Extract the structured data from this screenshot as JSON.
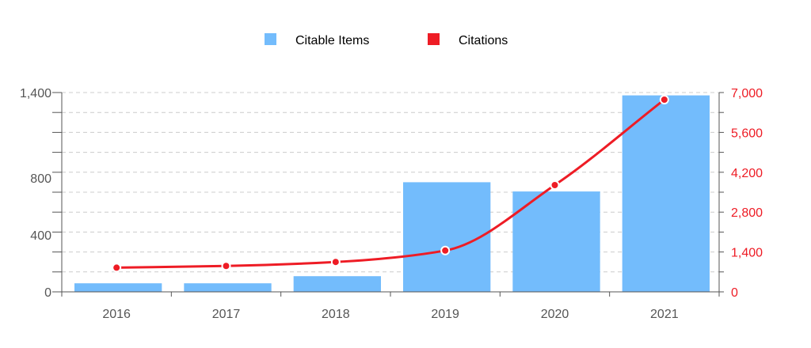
{
  "chart_data": {
    "type": "bar",
    "categories": [
      "2016",
      "2017",
      "2018",
      "2019",
      "2020",
      "2021"
    ],
    "series": [
      {
        "name": "Citable Items",
        "type": "bar",
        "axis": "left",
        "color": "#73bcfc",
        "values": [
          60,
          60,
          110,
          770,
          705,
          1380
        ]
      },
      {
        "name": "Citations",
        "type": "line",
        "axis": "right",
        "color": "#ee1c25",
        "values": [
          850,
          910,
          1050,
          1450,
          3750,
          6750
        ]
      }
    ],
    "y_left": {
      "ylim": [
        0,
        1400
      ],
      "ticks": [
        0,
        400,
        800,
        1400
      ],
      "tick_labels": [
        "0",
        "400",
        "800",
        "1,400"
      ]
    },
    "y_right": {
      "ylim": [
        0,
        7000
      ],
      "ticks": [
        0,
        1400,
        2800,
        4200,
        5600,
        7000
      ],
      "tick_labels": [
        "0",
        "1,400",
        "2,800",
        "4,200",
        "5,600",
        "7,000"
      ],
      "color": "#ee1c25"
    },
    "grid": true,
    "legend": "top-center"
  }
}
